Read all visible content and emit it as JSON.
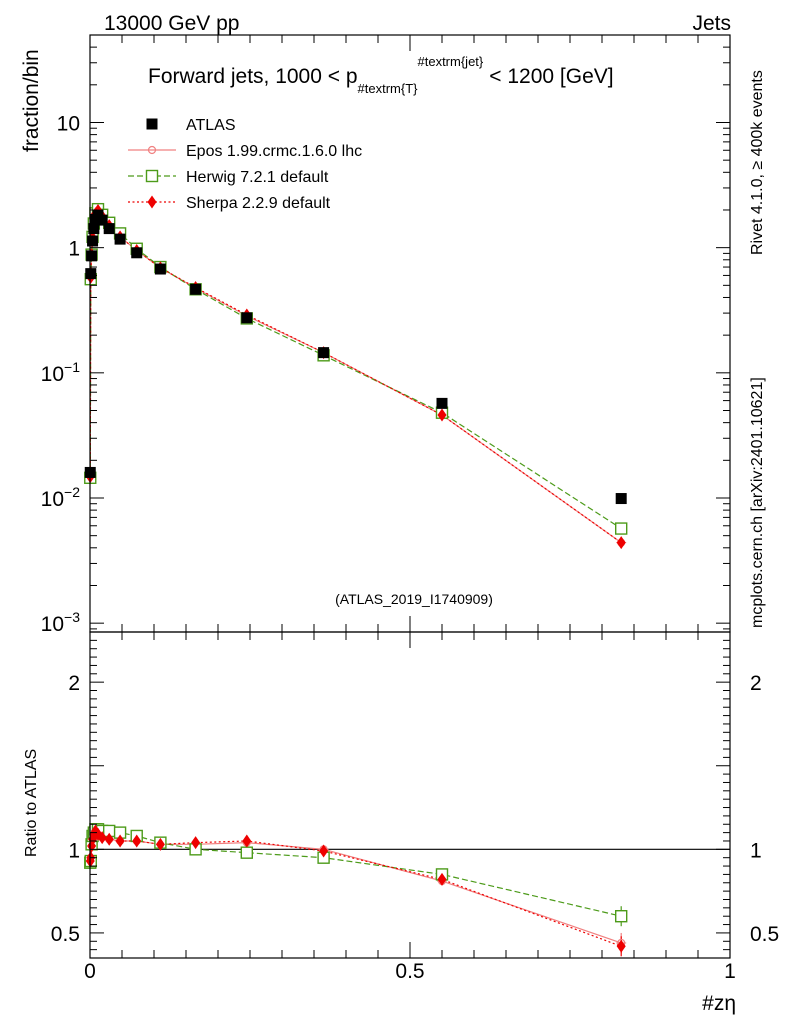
{
  "header": {
    "energy": "13000 GeV pp",
    "category": "Jets"
  },
  "side": {
    "rivet": "Rivet 4.1.0, ≥ 400k events",
    "mcplots": "mcplots.cern.ch [arXiv:2401.10621]"
  },
  "chart_data": {
    "type": "scatter",
    "title": "Forward jets, 1000 < p_{#textrm{T}}^{#textrm{jet}} < 1200 [GeV]",
    "title_parts": {
      "prefix": "Forward jets, 1000 < p",
      "sub": "#textrm{T}",
      "sup": "#textrm{jet}",
      "suffix": "< 1200 [GeV]"
    },
    "xlabel": "#zη",
    "ylabel": "fraction/bin",
    "ratio_ylabel": "Ratio to ATLAS",
    "analysis_label": "(ATLAS_2019_I1740909)",
    "xlim": [
      0,
      1
    ],
    "ylim": [
      0.00085,
      50
    ],
    "yscale": "log",
    "ratio_ylim": [
      0.35,
      2.3
    ],
    "x_ticks": [
      {
        "v": 0,
        "label": "0"
      },
      {
        "v": 0.5,
        "label": "0.5"
      },
      {
        "v": 1,
        "label": "1"
      }
    ],
    "y_ticks": [
      {
        "exp": 1,
        "base": "10",
        "sup": ""
      },
      {
        "exp": 0,
        "base": "1",
        "sup": ""
      },
      {
        "exp": -1,
        "base": "10",
        "sup": "−1"
      },
      {
        "exp": -2,
        "base": "10",
        "sup": "−2"
      },
      {
        "exp": -3,
        "base": "10",
        "sup": "−3"
      }
    ],
    "ratio_ticks": [
      {
        "v": 2,
        "label": "2"
      },
      {
        "v": 1,
        "label": "1"
      },
      {
        "v": 0.5,
        "label": "0.5"
      }
    ],
    "series": [
      {
        "name": "ATLAS",
        "role": "data",
        "color": "#000000",
        "x": [
          0.0004,
          0.0012,
          0.0025,
          0.004,
          0.006,
          0.0085,
          0.0125,
          0.019,
          0.03,
          0.047,
          0.073,
          0.11,
          0.165,
          0.245,
          0.365,
          0.55,
          0.83
        ],
        "values": [
          0.016,
          0.62,
          0.86,
          1.13,
          1.42,
          1.68,
          1.82,
          1.66,
          1.42,
          1.17,
          0.91,
          0.675,
          0.465,
          0.275,
          0.145,
          0.057,
          0.0099
        ]
      },
      {
        "name": "Epos 1.99.crmc.1.6.0 lhc",
        "role": "mc",
        "color": "#f08080",
        "x": [
          0.0004,
          0.0012,
          0.0025,
          0.004,
          0.006,
          0.0085,
          0.0125,
          0.019,
          0.03,
          0.047,
          0.073,
          0.11,
          0.165,
          0.245,
          0.365,
          0.55,
          0.83
        ],
        "values": [
          0.0148,
          0.58,
          0.88,
          1.2,
          1.55,
          1.86,
          1.98,
          1.78,
          1.5,
          1.22,
          0.95,
          0.69,
          0.475,
          0.285,
          0.145,
          0.046,
          0.0044
        ],
        "ratio": [
          0.93,
          0.94,
          1.02,
          1.06,
          1.09,
          1.11,
          1.09,
          1.07,
          1.06,
          1.05,
          1.05,
          1.03,
          1.03,
          1.04,
          1.0,
          0.81,
          0.44
        ]
      },
      {
        "name": "Herwig 7.2.1 default",
        "role": "mc",
        "color": "#4d9b1a",
        "x": [
          0.0004,
          0.0012,
          0.0025,
          0.004,
          0.006,
          0.0085,
          0.0125,
          0.019,
          0.03,
          0.047,
          0.073,
          0.11,
          0.165,
          0.245,
          0.365,
          0.55,
          0.83
        ],
        "values": [
          0.0145,
          0.56,
          0.88,
          1.22,
          1.56,
          1.88,
          2.03,
          1.83,
          1.58,
          1.3,
          0.98,
          0.7,
          0.465,
          0.272,
          0.138,
          0.048,
          0.0057
        ],
        "ratio": [
          0.92,
          0.93,
          1.03,
          1.08,
          1.1,
          1.12,
          1.12,
          1.11,
          1.11,
          1.1,
          1.08,
          1.04,
          1.0,
          0.98,
          0.95,
          0.85,
          0.6
        ]
      },
      {
        "name": "Sherpa 2.2.9 default",
        "role": "mc",
        "color": "#ee0000",
        "x": [
          0.0004,
          0.0012,
          0.0025,
          0.004,
          0.006,
          0.0085,
          0.0125,
          0.019,
          0.03,
          0.047,
          0.073,
          0.11,
          0.165,
          0.245,
          0.365,
          0.55,
          0.83
        ],
        "values": [
          0.0148,
          0.58,
          0.88,
          1.2,
          1.55,
          1.86,
          1.98,
          1.78,
          1.5,
          1.22,
          0.95,
          0.69,
          0.48,
          0.29,
          0.145,
          0.046,
          0.0044
        ],
        "ratio": [
          0.93,
          0.95,
          1.02,
          1.06,
          1.09,
          1.11,
          1.09,
          1.07,
          1.06,
          1.05,
          1.05,
          1.03,
          1.04,
          1.05,
          0.99,
          0.82,
          0.42
        ]
      }
    ]
  }
}
